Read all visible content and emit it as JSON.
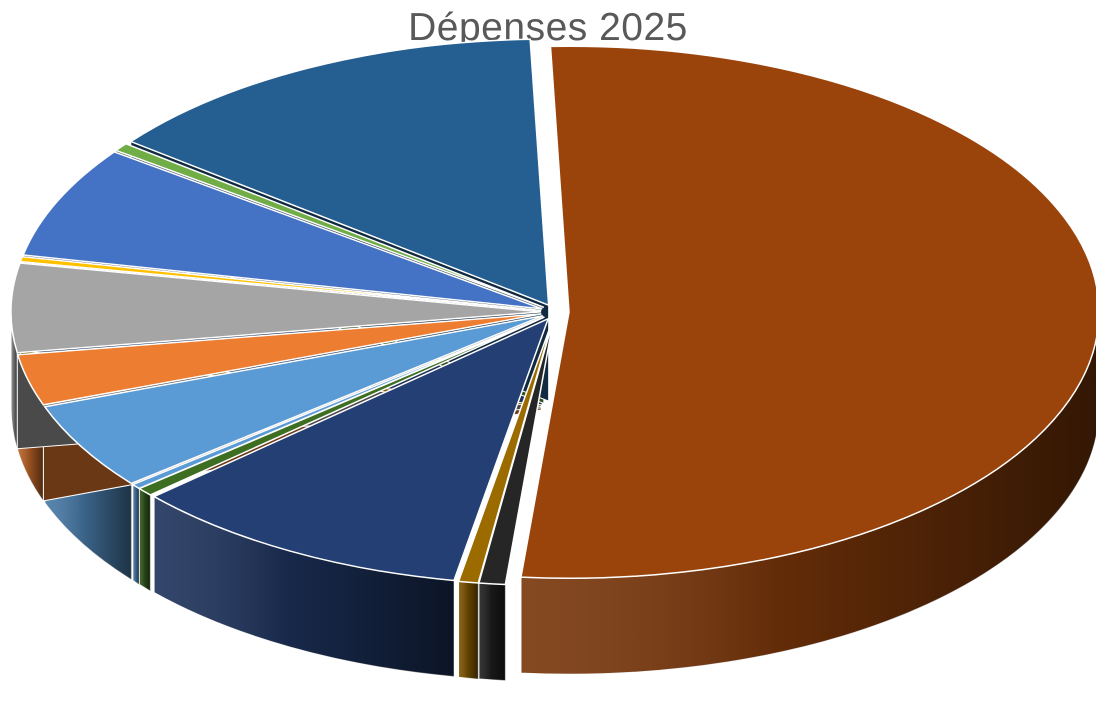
{
  "chart_data": {
    "type": "pie",
    "style": "3d-exploded",
    "title": "Dépenses 2025",
    "legend": "none",
    "slices": [
      {
        "value": 52.0,
        "color": "#9a440c"
      },
      {
        "value": 0.8,
        "color": "#262626"
      },
      {
        "value": 0.6,
        "color": "#9c6b00"
      },
      {
        "value": 10.5,
        "color": "#243f73"
      },
      {
        "value": 0.5,
        "color": "#3e6e22"
      },
      {
        "value": 0.3,
        "color": "#5b9bd5"
      },
      {
        "value": 5.3,
        "color": "#5b9bd5"
      },
      {
        "value": 3.1,
        "color": "#ed7d31"
      },
      {
        "value": 5.4,
        "color": "#a5a5a5"
      },
      {
        "value": 0.3,
        "color": "#ffc000"
      },
      {
        "value": 6.8,
        "color": "#4472c4"
      },
      {
        "value": 0.5,
        "color": "#70ad47"
      },
      {
        "value": 13.9,
        "color": "#255e91"
      }
    ]
  }
}
